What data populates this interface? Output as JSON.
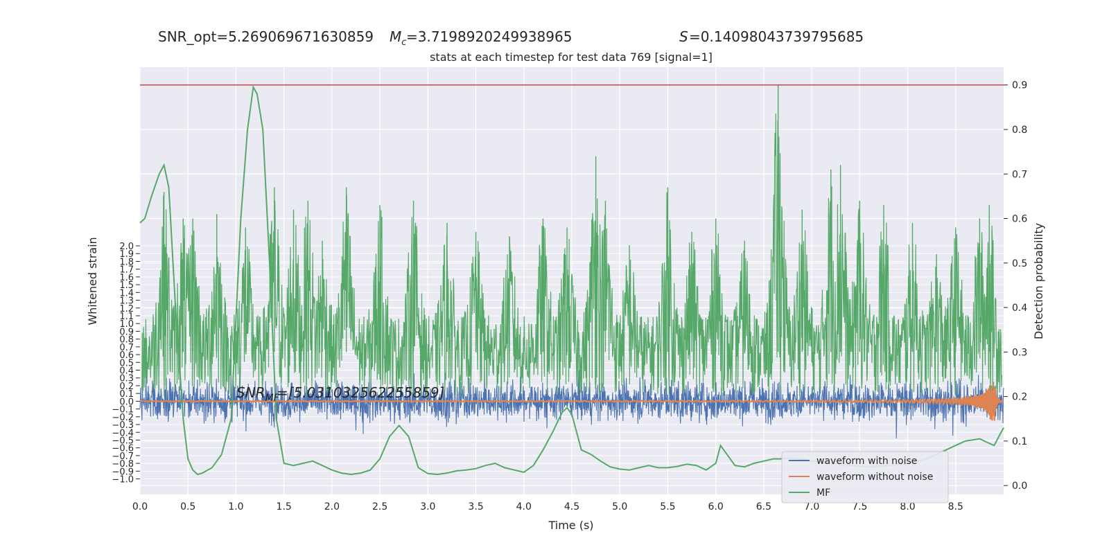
{
  "header": {
    "snr_opt": "SNR_opt=5.269069671630859",
    "mc": "=3.7198920249938965",
    "s": "=0.14098043739795685"
  },
  "chart_data": {
    "type": "line",
    "title": "stats at each timestep for test data 769 [signal=1]",
    "xlabel": "Time (s)",
    "ylabel_left": "Whitened strain",
    "ylabel_right": "Detection probability",
    "xlim": [
      0.0,
      9.0
    ],
    "ylim_left": [
      -1.2,
      4.3
    ],
    "ylim_right": [
      -0.02,
      0.94
    ],
    "x_ticks": [
      "0.0",
      "0.5",
      "1.0",
      "1.5",
      "2.0",
      "2.5",
      "3.0",
      "3.5",
      "4.0",
      "4.5",
      "5.0",
      "5.5",
      "6.0",
      "6.5",
      "7.0",
      "7.5",
      "8.0",
      "8.5"
    ],
    "left_ticks": [
      "-1.0",
      "-0.9",
      "-0.8",
      "-0.7",
      "-0.6",
      "-0.5",
      "-0.4",
      "-0.3",
      "-0.2",
      "-0.1",
      "0.0",
      "0.1",
      "0.2",
      "0.3",
      "0.4",
      "0.5",
      "0.6",
      "0.7",
      "0.8",
      "0.9",
      "1.0",
      "1.1",
      "1.2",
      "1.3",
      "1.4",
      "1.5",
      "1.6",
      "1.7",
      "1.8",
      "1.9",
      "2.0"
    ],
    "right_ticks": [
      "0.0",
      "0.1",
      "0.2",
      "0.3",
      "0.4",
      "0.5",
      "0.6",
      "0.7",
      "0.8",
      "0.9"
    ],
    "threshold": 0.9,
    "annotation": "=[5.031032562255859]",
    "series": [
      {
        "name": "waveform with noise",
        "color": "#4c72b0",
        "axis": "left",
        "amplitude_typical": 0.25,
        "amplitude_max": 0.8
      },
      {
        "name": "waveform without noise",
        "color": "#dd8452",
        "axis": "left",
        "chirp_end_amplitude": 0.25,
        "merger_time": 8.9
      },
      {
        "name": "MF",
        "color": "#55a868",
        "axis": "right",
        "smooth_t": [
          0.0,
          0.05,
          0.12,
          0.2,
          0.25,
          0.3,
          0.37,
          0.45,
          0.5,
          0.55,
          0.6,
          0.65,
          0.75,
          0.85,
          0.95,
          1.05,
          1.12,
          1.18,
          1.22,
          1.28,
          1.35,
          1.42,
          1.5,
          1.6,
          1.7,
          1.8,
          1.9,
          2.0,
          2.1,
          2.2,
          2.3,
          2.4,
          2.5,
          2.6,
          2.7,
          2.8,
          2.9,
          3.0,
          3.1,
          3.2,
          3.3,
          3.4,
          3.5,
          3.6,
          3.7,
          3.8,
          3.9,
          4.0,
          4.1,
          4.2,
          4.3,
          4.4,
          4.45,
          4.5,
          4.6,
          4.7,
          4.8,
          4.9,
          5.0,
          5.1,
          5.2,
          5.3,
          5.4,
          5.5,
          5.6,
          5.7,
          5.8,
          5.9,
          6.0,
          6.05,
          6.1,
          6.2,
          6.3,
          6.4,
          6.5,
          6.6,
          6.7,
          6.8,
          6.9,
          7.0,
          7.2,
          7.4,
          7.6,
          7.8,
          8.0,
          8.2,
          8.4,
          8.6,
          8.75,
          8.85,
          8.9,
          8.95,
          9.0
        ],
        "smooth_y": [
          0.59,
          0.6,
          0.65,
          0.7,
          0.72,
          0.67,
          0.4,
          0.15,
          0.06,
          0.035,
          0.025,
          0.028,
          0.04,
          0.07,
          0.15,
          0.6,
          0.8,
          0.895,
          0.88,
          0.8,
          0.5,
          0.15,
          0.05,
          0.045,
          0.05,
          0.055,
          0.045,
          0.035,
          0.028,
          0.025,
          0.028,
          0.035,
          0.06,
          0.11,
          0.135,
          0.11,
          0.04,
          0.027,
          0.025,
          0.028,
          0.033,
          0.035,
          0.038,
          0.045,
          0.05,
          0.04,
          0.035,
          0.03,
          0.045,
          0.08,
          0.12,
          0.165,
          0.175,
          0.16,
          0.08,
          0.07,
          0.055,
          0.042,
          0.037,
          0.035,
          0.04,
          0.045,
          0.04,
          0.04,
          0.043,
          0.048,
          0.045,
          0.035,
          0.05,
          0.09,
          0.075,
          0.045,
          0.042,
          0.05,
          0.055,
          0.06,
          0.06,
          0.062,
          0.06,
          0.055,
          0.05,
          0.045,
          0.042,
          0.045,
          0.05,
          0.06,
          0.08,
          0.1,
          0.105,
          0.095,
          0.09,
          0.11,
          0.13
        ],
        "peaks_t": [
          0.25,
          0.45,
          0.55,
          0.8,
          1.1,
          1.4,
          1.6,
          1.75,
          1.9,
          2.15,
          2.5,
          2.85,
          3.2,
          3.5,
          3.85,
          4.2,
          4.45,
          4.75,
          4.85,
          5.1,
          5.5,
          5.75,
          6.0,
          6.3,
          6.65,
          6.9,
          7.2,
          7.3,
          7.5,
          7.75,
          8.05,
          8.3,
          8.5,
          8.75,
          8.85
        ],
        "peaks_y": [
          0.66,
          0.6,
          0.6,
          0.61,
          0.58,
          0.67,
          0.62,
          0.64,
          0.55,
          0.67,
          0.63,
          0.64,
          0.59,
          0.57,
          0.56,
          0.6,
          0.58,
          0.74,
          0.64,
          0.54,
          0.67,
          0.57,
          0.6,
          0.55,
          0.9,
          0.62,
          0.71,
          0.72,
          0.64,
          0.63,
          0.59,
          0.52,
          0.58,
          0.6,
          0.63
        ]
      }
    ],
    "legend": {
      "position": "lower-right",
      "items": [
        "waveform with noise",
        "waveform without noise",
        "MF"
      ]
    },
    "colors": {
      "panel_bg": "#eaeaf2",
      "grid": "#ffffff",
      "threshold": "#c44e52"
    }
  }
}
